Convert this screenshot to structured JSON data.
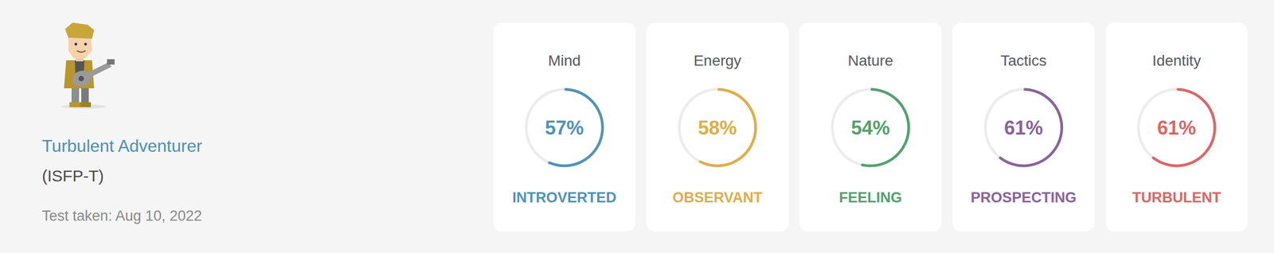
{
  "header": {
    "title": "Turbulent Adventurer",
    "subtitle": "(ISFP-T)",
    "note": "Test taken: Aug 10, 2022"
  },
  "chart_data": [
    {
      "type": "gauge",
      "title": "Mind",
      "values": [
        57
      ],
      "value_labels": [
        "57%"
      ],
      "ylim": [
        0,
        100
      ],
      "subtitle": "INTROVERTED",
      "color": "#4f93b8"
    },
    {
      "type": "gauge",
      "title": "Energy",
      "values": [
        58
      ],
      "value_labels": [
        "58%"
      ],
      "ylim": [
        0,
        100
      ],
      "subtitle": "OBSERVANT",
      "color": "#e2ad46"
    },
    {
      "type": "gauge",
      "title": "Nature",
      "values": [
        54
      ],
      "value_labels": [
        "54%"
      ],
      "ylim": [
        0,
        100
      ],
      "subtitle": "FEELING",
      "color": "#4fa36d"
    },
    {
      "type": "gauge",
      "title": "Tactics",
      "values": [
        61
      ],
      "value_labels": [
        "61%"
      ],
      "ylim": [
        0,
        100
      ],
      "subtitle": "PROSPECTING",
      "color": "#8a62a0"
    },
    {
      "type": "gauge",
      "title": "Identity",
      "values": [
        61
      ],
      "value_labels": [
        "61%"
      ],
      "ylim": [
        0,
        100
      ],
      "subtitle": "TURBULENT",
      "color": "#e06464"
    }
  ]
}
